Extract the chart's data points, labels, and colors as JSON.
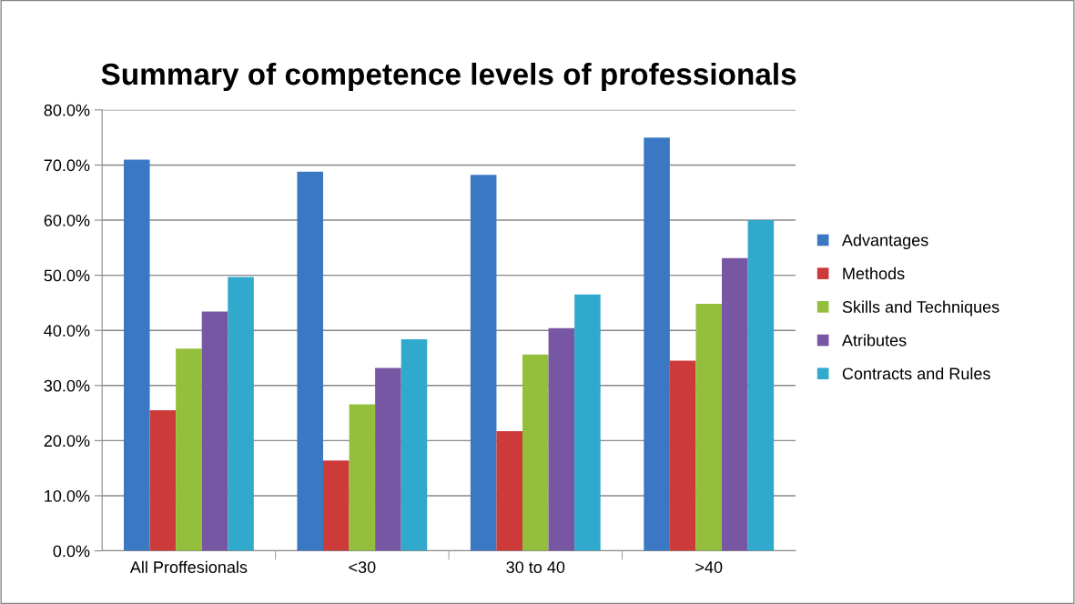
{
  "chart_data": {
    "type": "bar",
    "title": "Summary of competence levels of professionals",
    "categories": [
      "All Proffesionals",
      "<30",
      "30 to 40",
      ">40"
    ],
    "series": [
      {
        "name": "Advantages",
        "color": "#3a78c3",
        "values": [
          71.0,
          68.8,
          68.2,
          75.0
        ]
      },
      {
        "name": "Methods",
        "color": "#cc3b3a",
        "values": [
          25.5,
          16.4,
          21.7,
          34.5
        ]
      },
      {
        "name": "Skills and Techniques",
        "color": "#94bf3c",
        "values": [
          36.7,
          26.6,
          35.6,
          44.8
        ]
      },
      {
        "name": "Atributes",
        "color": "#7756a3",
        "values": [
          43.4,
          33.2,
          40.4,
          53.1
        ]
      },
      {
        "name": "Contracts and Rules",
        "color": "#31a9cc",
        "values": [
          49.7,
          38.4,
          46.5,
          60.0
        ]
      }
    ],
    "ylim": [
      0,
      80
    ],
    "yticks": [
      {
        "value": 0,
        "label": "0.0%"
      },
      {
        "value": 10,
        "label": "10.0%"
      },
      {
        "value": 20,
        "label": "20.0%"
      },
      {
        "value": 30,
        "label": "30.0%"
      },
      {
        "value": 40,
        "label": "40.0%"
      },
      {
        "value": 50,
        "label": "50.0%"
      },
      {
        "value": 60,
        "label": "60.0%"
      },
      {
        "value": 70,
        "label": "70.0%"
      },
      {
        "value": 80,
        "label": "80.0%"
      }
    ],
    "grid": "y",
    "legend": "right"
  }
}
